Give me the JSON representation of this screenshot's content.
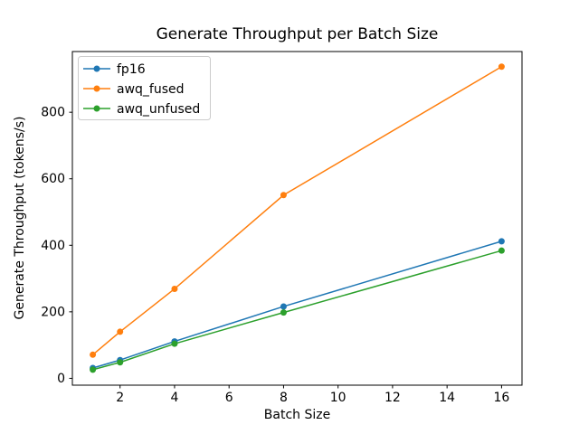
{
  "figure": {
    "title": "Generate Throughput per Batch Size",
    "xlabel": "Batch Size",
    "ylabel": "Generate Throughput (tokens/s)"
  },
  "chart_data": {
    "type": "line",
    "title": "Generate Throughput per Batch Size",
    "xlabel": "Batch Size",
    "ylabel": "Generate Throughput (tokens/s)",
    "x": [
      1,
      2,
      4,
      8,
      16
    ],
    "series": [
      {
        "name": "fp16",
        "color": "#1f77b4",
        "values": [
          31,
          55,
          111,
          216,
          412
        ]
      },
      {
        "name": "awq_fused",
        "color": "#ff7f0e",
        "values": [
          71,
          140,
          269,
          551,
          937
        ]
      },
      {
        "name": "awq_unfused",
        "color": "#2ca02c",
        "values": [
          26,
          48,
          104,
          198,
          384
        ]
      }
    ],
    "xlim": [
      0.25,
      16.75
    ],
    "ylim": [
      -20.6,
      982.6
    ],
    "xticks": [
      2,
      4,
      6,
      8,
      10,
      12,
      14,
      16
    ],
    "yticks": [
      0,
      200,
      400,
      600,
      800
    ],
    "legend_position": "upper left",
    "legend_labels": [
      "fp16",
      "awq_fused",
      "awq_unfused"
    ],
    "grid": false,
    "marker": "o"
  },
  "colors": {
    "background": "#ffffff",
    "spine": "#000000",
    "tick": "#000000",
    "legend_border": "#cccccc",
    "legend_fill": "#ffffff",
    "series_blue": "#1f77b4",
    "series_orange": "#ff7f0e",
    "series_green": "#2ca02c"
  }
}
